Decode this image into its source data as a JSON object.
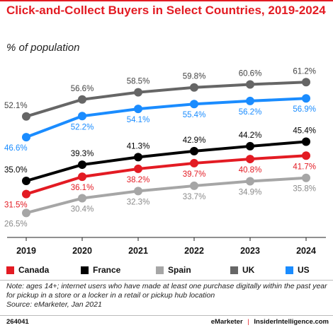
{
  "title": "Click-and-Collect Buyers in Select Countries, 2019-2024",
  "subtitle": "% of population",
  "chart_data": {
    "type": "line",
    "x": [
      "2019",
      "2020",
      "2021",
      "2022",
      "2023",
      "2024"
    ],
    "ylim": [
      20,
      65
    ],
    "series": [
      {
        "name": "Canada",
        "color": "#e31b23",
        "values": [
          31.5,
          36.1,
          38.2,
          39.7,
          40.8,
          41.7
        ],
        "labels": [
          "31.5%",
          "36.1%",
          "38.2%",
          "39.7%",
          "40.8%",
          "41.7%"
        ]
      },
      {
        "name": "France",
        "color": "#000000",
        "values": [
          35.0,
          39.3,
          41.3,
          42.9,
          44.2,
          45.4
        ],
        "labels": [
          "35.0%",
          "39.3%",
          "41.3%",
          "42.9%",
          "44.2%",
          "45.4%"
        ]
      },
      {
        "name": "Spain",
        "color": "#a6a6a6",
        "values": [
          26.5,
          30.4,
          32.3,
          33.7,
          34.9,
          35.8
        ],
        "labels": [
          "26.5%",
          "30.4%",
          "32.3%",
          "33.7%",
          "34.9%",
          "35.8%"
        ]
      },
      {
        "name": "UK",
        "color": "#666666",
        "values": [
          52.1,
          56.6,
          58.5,
          59.8,
          60.6,
          61.2
        ],
        "labels": [
          "52.1%",
          "56.6%",
          "58.5%",
          "59.8%",
          "60.6%",
          "61.2%"
        ]
      },
      {
        "name": "US",
        "color": "#1a8cff",
        "values": [
          46.6,
          52.2,
          54.1,
          55.4,
          56.2,
          56.9
        ],
        "labels": [
          "46.6%",
          "52.2%",
          "54.1%",
          "55.4%",
          "56.2%",
          "56.9%"
        ]
      }
    ],
    "grid": false,
    "legend_position": "bottom"
  },
  "note": "Note: ages 14+; internet users who have made at least one purchase digitally within the past year for pickup in a store or a locker in a retail or pickup hub location",
  "source": "Source: eMarketer, Jan 2021",
  "footer": {
    "id": "264041",
    "brand": "eMarketer",
    "separator": "|",
    "site": "InsiderIntelligence.com"
  }
}
